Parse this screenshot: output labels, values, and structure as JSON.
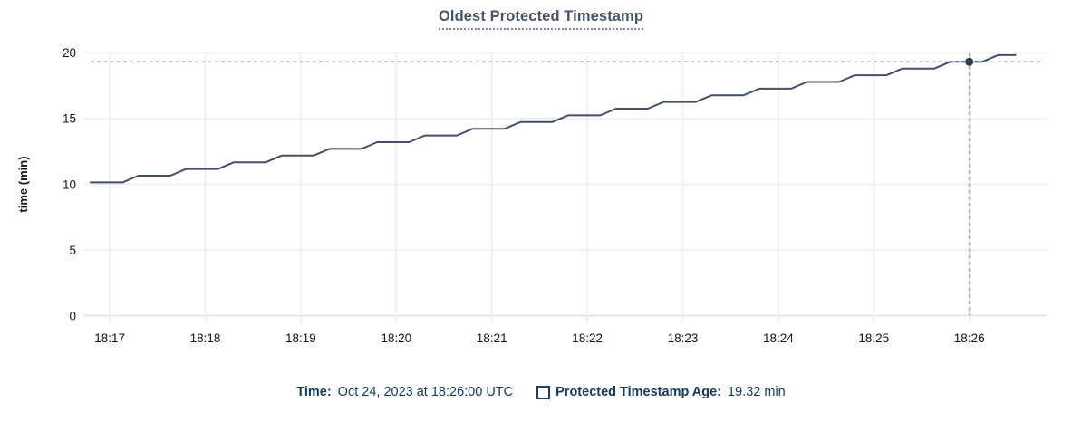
{
  "colors": {
    "series": "#44506a",
    "hover_dot": "#2e3c58",
    "crosshair": "#a6b5bd",
    "grid": "#f0f0f0",
    "axis_line": "#e6e6e6",
    "tick_text": "#141414",
    "title": "#44526b",
    "legend_text": "#143a63"
  },
  "legend": {
    "time_label": "Time:",
    "time_value": "Oct 24, 2023 at 18:26:00 UTC",
    "series_label": "Protected Timestamp Age:",
    "series_value": "19.32 min"
  },
  "chart_data": {
    "type": "line",
    "title": "Oldest Protected Timestamp",
    "ylabel": "time (min)",
    "xlabel": "",
    "ylim": [
      0,
      20
    ],
    "grid": true,
    "legend_position": "bottom",
    "y_ticks": [
      0,
      5,
      10,
      15,
      20
    ],
    "x_ticks": [
      {
        "label": "18:17",
        "sec": 0
      },
      {
        "label": "18:18",
        "sec": 60
      },
      {
        "label": "18:19",
        "sec": 120
      },
      {
        "label": "18:20",
        "sec": 180
      },
      {
        "label": "18:21",
        "sec": 240
      },
      {
        "label": "18:22",
        "sec": 300
      },
      {
        "label": "18:23",
        "sec": 360
      },
      {
        "label": "18:24",
        "sec": 420
      },
      {
        "label": "18:25",
        "sec": 480
      },
      {
        "label": "18:26",
        "sec": 540
      }
    ],
    "series": [
      {
        "name": "Protected Timestamp Age",
        "unit": "min",
        "points": [
          [
            -12,
            10.14
          ],
          [
            8,
            10.14
          ],
          [
            18,
            10.65
          ],
          [
            38,
            10.65
          ],
          [
            48,
            11.16
          ],
          [
            68,
            11.16
          ],
          [
            78,
            11.67
          ],
          [
            98,
            11.67
          ],
          [
            108,
            12.18
          ],
          [
            128,
            12.18
          ],
          [
            138,
            12.69
          ],
          [
            158,
            12.69
          ],
          [
            168,
            13.2
          ],
          [
            188,
            13.2
          ],
          [
            198,
            13.71
          ],
          [
            218,
            13.71
          ],
          [
            228,
            14.22
          ],
          [
            248,
            14.22
          ],
          [
            258,
            14.73
          ],
          [
            278,
            14.73
          ],
          [
            288,
            15.24
          ],
          [
            308,
            15.24
          ],
          [
            318,
            15.75
          ],
          [
            338,
            15.75
          ],
          [
            348,
            16.26
          ],
          [
            368,
            16.26
          ],
          [
            378,
            16.77
          ],
          [
            398,
            16.77
          ],
          [
            408,
            17.28
          ],
          [
            428,
            17.28
          ],
          [
            438,
            17.79
          ],
          [
            458,
            17.79
          ],
          [
            468,
            18.3
          ],
          [
            488,
            18.3
          ],
          [
            498,
            18.81
          ],
          [
            518,
            18.81
          ],
          [
            528,
            19.32
          ],
          [
            548,
            19.32
          ],
          [
            558,
            19.83
          ],
          [
            569,
            19.83
          ]
        ]
      }
    ],
    "hover": {
      "x_label": "18:26:00",
      "sec": 540,
      "value": 19.32
    }
  }
}
